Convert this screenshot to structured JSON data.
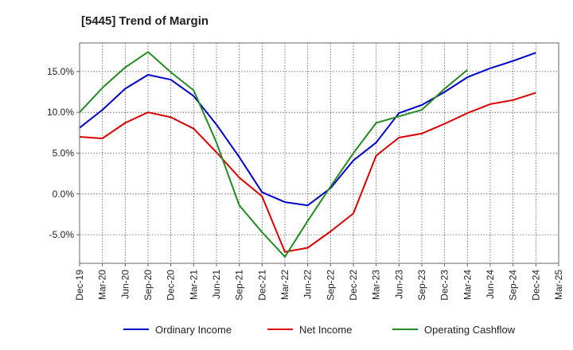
{
  "chart_data": {
    "type": "line",
    "title": "[5445]  Trend of Margin",
    "xlabel": "",
    "ylabel": "",
    "categories": [
      "Dec-19",
      "Mar-20",
      "Jun-20",
      "Sep-20",
      "Dec-20",
      "Mar-21",
      "Jun-21",
      "Sep-21",
      "Dec-21",
      "Mar-22",
      "Jun-22",
      "Sep-22",
      "Dec-22",
      "Mar-23",
      "Jun-23",
      "Sep-23",
      "Dec-23",
      "Mar-24",
      "Jun-24",
      "Sep-24",
      "Dec-24",
      "Mar-25"
    ],
    "ylim": [
      -8.5,
      18.5
    ],
    "yticks": [
      -5,
      0,
      5,
      10,
      15
    ],
    "ytick_labels": [
      "-5.0%",
      "0.0%",
      "5.0%",
      "10.0%",
      "15.0%"
    ],
    "grid": true,
    "legend_position": "bottom",
    "series": [
      {
        "name": "Ordinary Income",
        "color": "#0000cc",
        "values": [
          8.1,
          10.3,
          12.9,
          14.6,
          14.0,
          12.0,
          8.5,
          4.5,
          0.2,
          -1.0,
          -1.4,
          0.7,
          4.1,
          6.3,
          9.9,
          10.9,
          12.5,
          14.3,
          15.4,
          16.3,
          17.3,
          null
        ]
      },
      {
        "name": "Net Income",
        "color": "#dd0000",
        "values": [
          7.0,
          6.8,
          8.7,
          10.0,
          9.4,
          8.0,
          5.1,
          2.0,
          -0.3,
          -7.1,
          -6.6,
          -4.6,
          -2.4,
          4.7,
          6.9,
          7.4,
          8.6,
          9.9,
          11.0,
          11.5,
          12.4,
          null
        ]
      },
      {
        "name": "Operating Cashflow",
        "color": "#228B22",
        "values": [
          10.0,
          13.0,
          15.5,
          17.4,
          14.9,
          12.7,
          6.3,
          -1.4,
          -4.7,
          -7.7,
          -3.3,
          0.9,
          5.0,
          8.7,
          9.5,
          10.3,
          12.9,
          15.2,
          null,
          null,
          null,
          null
        ]
      }
    ]
  }
}
